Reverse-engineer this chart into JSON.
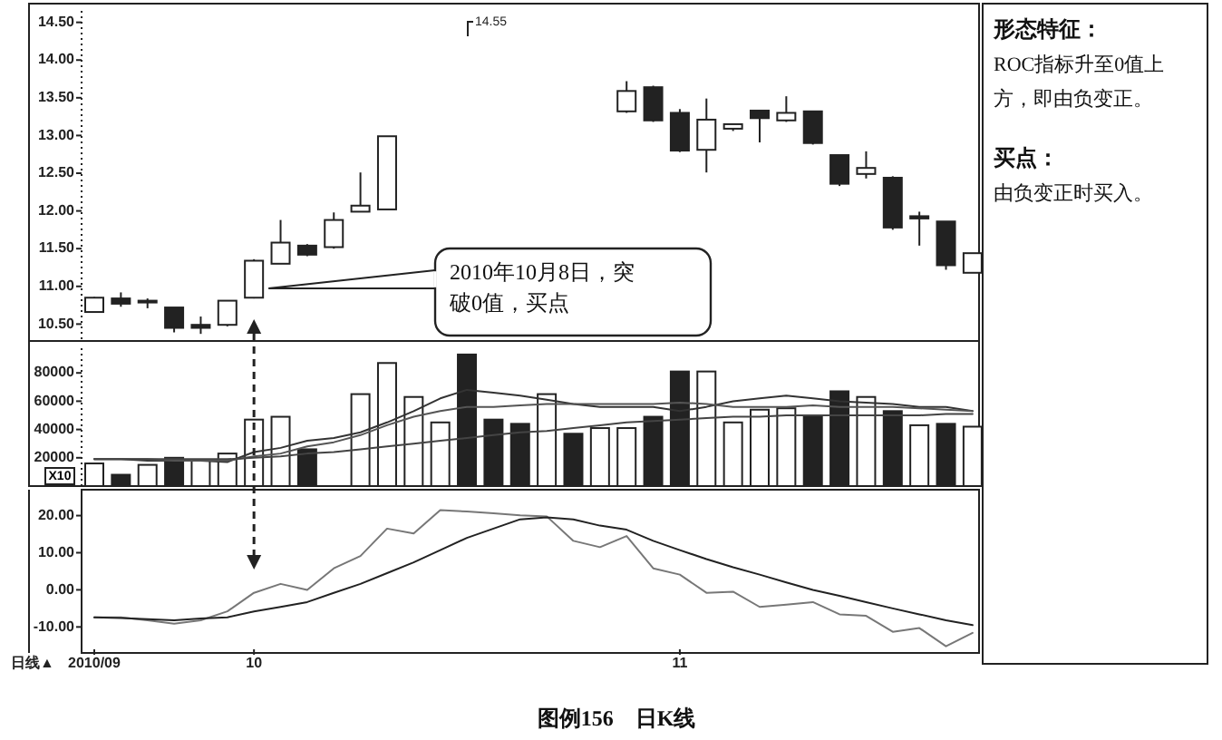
{
  "chart_data": [
    {
      "type": "candlestick",
      "categories": [
        null,
        null,
        null,
        null,
        null,
        null,
        null,
        null,
        null,
        null,
        null,
        null,
        null,
        null,
        null,
        null,
        null,
        null,
        null,
        null,
        null,
        null,
        null,
        null,
        null,
        null,
        null,
        null,
        null,
        null,
        null,
        null,
        null,
        null
      ],
      "ohlc": [
        [
          10.66,
          10.86,
          10.65,
          10.85
        ],
        [
          10.84,
          10.92,
          10.73,
          10.77
        ],
        [
          10.81,
          10.84,
          10.71,
          10.8
        ],
        [
          10.72,
          10.72,
          10.39,
          10.45
        ],
        [
          10.49,
          10.6,
          10.37,
          10.45
        ],
        [
          10.49,
          10.81,
          10.47,
          10.81
        ],
        [
          10.85,
          11.36,
          10.84,
          11.34
        ],
        [
          11.3,
          11.88,
          11.3,
          11.58
        ],
        [
          11.54,
          11.56,
          11.4,
          11.42
        ],
        [
          11.52,
          11.98,
          11.5,
          11.88
        ],
        [
          11.99,
          12.51,
          11.99,
          12.07
        ],
        [
          12.02,
          12.99,
          12.02,
          12.99
        ],
        null,
        null,
        null,
        null,
        null,
        null,
        null,
        null,
        [
          13.32,
          13.72,
          13.3,
          13.59
        ],
        [
          13.64,
          13.66,
          13.18,
          13.2
        ],
        [
          13.3,
          13.35,
          12.78,
          12.8
        ],
        [
          12.81,
          13.49,
          12.51,
          13.21
        ],
        [
          13.09,
          13.16,
          13.06,
          13.15
        ],
        [
          13.33,
          13.34,
          12.91,
          13.23
        ],
        [
          13.2,
          13.52,
          13.18,
          13.3
        ],
        [
          13.32,
          13.32,
          12.88,
          12.9
        ],
        [
          12.74,
          12.74,
          12.33,
          12.36
        ],
        [
          12.49,
          12.79,
          12.43,
          12.57
        ],
        [
          12.44,
          12.46,
          11.75,
          11.78
        ],
        [
          11.93,
          11.99,
          11.54,
          11.9
        ],
        [
          11.86,
          11.86,
          11.22,
          11.28
        ],
        [
          11.18,
          11.44,
          11.18,
          11.44
        ]
      ],
      "ylim": [
        10.3,
        14.7
      ],
      "yticks": [
        {
          "value": 10.5,
          "label": "10.50"
        },
        {
          "value": 11,
          "label": "11.00"
        },
        {
          "value": 11.5,
          "label": "11.50"
        },
        {
          "value": 12,
          "label": "12.00"
        },
        {
          "value": 12.5,
          "label": "12.50"
        },
        {
          "value": 13,
          "label": "13.00"
        },
        {
          "value": 13.5,
          "label": "13.50"
        },
        {
          "value": 14,
          "label": "14.00"
        },
        {
          "value": 14.5,
          "label": "14.50"
        }
      ],
      "tick_labels": "y",
      "annotations": [
        "14.55",
        "2010年10月8日，突破0值，买点"
      ]
    },
    {
      "type": "bar",
      "categories": [
        null,
        null,
        null,
        null,
        null,
        null,
        null,
        null,
        null,
        null,
        null,
        null,
        null,
        null,
        null,
        null,
        null,
        null,
        null,
        null,
        null,
        null,
        null,
        null,
        null,
        null,
        null,
        null,
        null,
        null,
        null,
        null,
        null,
        null
      ],
      "series": [
        {
          "type": "bar",
          "colors": [
            "#ffffff",
            "#222222",
            "#ffffff",
            "#222222",
            "#ffffff",
            "#ffffff",
            "#ffffff",
            "#ffffff",
            "#222222",
            null,
            "#ffffff",
            "#ffffff",
            "#ffffff",
            "#ffffff",
            "#222222",
            "#222222",
            "#222222",
            "#ffffff",
            "#222222",
            "#ffffff",
            "#ffffff",
            "#222222",
            "#222222",
            "#ffffff",
            "#ffffff",
            "#ffffff",
            "#ffffff",
            "#222222",
            "#222222",
            "#ffffff",
            "#222222",
            "#ffffff",
            "#222222",
            "#ffffff"
          ],
          "values": [
            16000,
            8000,
            15000,
            20000,
            18000,
            23000,
            47000,
            49000,
            26000,
            null,
            65000,
            87000,
            63000,
            45000,
            93000,
            47000,
            44000,
            65000,
            37000,
            41000,
            41000,
            49000,
            81000,
            81000,
            45000,
            54000,
            55000,
            49000,
            67000,
            63000,
            53000,
            43000,
            44000,
            42000
          ]
        },
        {
          "type": "line",
          "color": "#333333",
          "values": [
            19000,
            19000,
            18000,
            18000,
            18000,
            17000,
            24000,
            27000,
            32000,
            34000,
            38000,
            45000,
            53000,
            62000,
            68000,
            66000,
            64000,
            61000,
            58000,
            56000,
            56000,
            56000,
            53000,
            56000,
            60000,
            62000,
            64000,
            62000,
            60000,
            59000,
            58000,
            56000,
            56000,
            53000
          ]
        },
        {
          "type": "line",
          "color": "#555555",
          "values": [
            19000,
            19000,
            19000,
            18000,
            18000,
            18000,
            21000,
            23000,
            28000,
            31000,
            36000,
            43000,
            49000,
            53000,
            56000,
            56000,
            57000,
            58000,
            58000,
            58000,
            58000,
            58000,
            59000,
            58000,
            56000,
            56000,
            56000,
            57000,
            56000,
            56000,
            56000,
            55000,
            54000,
            53000
          ]
        },
        {
          "type": "line",
          "color": "#444444",
          "values": [
            19000,
            19000,
            19000,
            19000,
            19000,
            19000,
            20000,
            21000,
            23000,
            24000,
            26000,
            28000,
            30000,
            32000,
            34000,
            36000,
            38000,
            39000,
            41000,
            43000,
            45000,
            46000,
            47000,
            48000,
            49000,
            49000,
            50000,
            50000,
            50000,
            50000,
            50000,
            50000,
            51000,
            51000
          ]
        }
      ],
      "ylim": [
        0,
        100000
      ],
      "yticks": [
        20000,
        40000,
        60000,
        80000
      ],
      "tick_labels": "y",
      "annotations": [
        "X10"
      ]
    },
    {
      "type": "line",
      "categories": [
        "2010/09",
        null,
        null,
        null,
        null,
        null,
        "10",
        null,
        null,
        null,
        null,
        null,
        null,
        null,
        null,
        null,
        null,
        null,
        null,
        null,
        null,
        null,
        "11",
        null,
        null,
        null,
        null,
        null,
        null,
        null,
        null,
        null,
        null,
        null
      ],
      "series": [
        {
          "color": "#777777",
          "values": [
            -7.4,
            -7.4,
            -8.2,
            -9.1,
            -8.2,
            -5.8,
            -0.8,
            1.6,
            0.0,
            5.8,
            9.1,
            16.5,
            15.2,
            21.5,
            21.1,
            20.6,
            20.1,
            19.8,
            13.2,
            11.5,
            14.5,
            5.8,
            4.1,
            -0.8,
            -0.5,
            -4.6,
            -4.0,
            -3.3,
            -6.6,
            -7.0,
            -11.3,
            -10.3,
            -15.2,
            -11.6
          ]
        },
        {
          "color": "#222222",
          "values": [
            -7.4,
            -7.6,
            -7.9,
            -8.2,
            -7.7,
            -7.4,
            -5.8,
            -4.6,
            -3.3,
            -0.8,
            1.6,
            4.5,
            7.4,
            10.7,
            14.0,
            16.5,
            19.0,
            19.5,
            19.0,
            17.3,
            16.2,
            13.2,
            10.7,
            8.3,
            6.1,
            4.1,
            2.0,
            0.0,
            -1.6,
            -3.3,
            -5.0,
            -6.6,
            -8.2,
            -9.5
          ]
        }
      ],
      "ylim": [
        -17,
        26
      ],
      "yticks": [
        {
          "value": -10,
          "label": "-10.00"
        },
        {
          "value": 0,
          "label": "0.00"
        },
        {
          "value": 10,
          "label": "10.00"
        },
        {
          "value": 20,
          "label": "20.00"
        }
      ],
      "annotations": [
        "日线▲",
        "图例156　日K线"
      ]
    },
    {
      "type": "other",
      "annotations": [
        "形态特征：",
        "ROC指标升至0值上方，即由负变正。",
        "买点：",
        "由负变正时买入。"
      ]
    }
  ]
}
